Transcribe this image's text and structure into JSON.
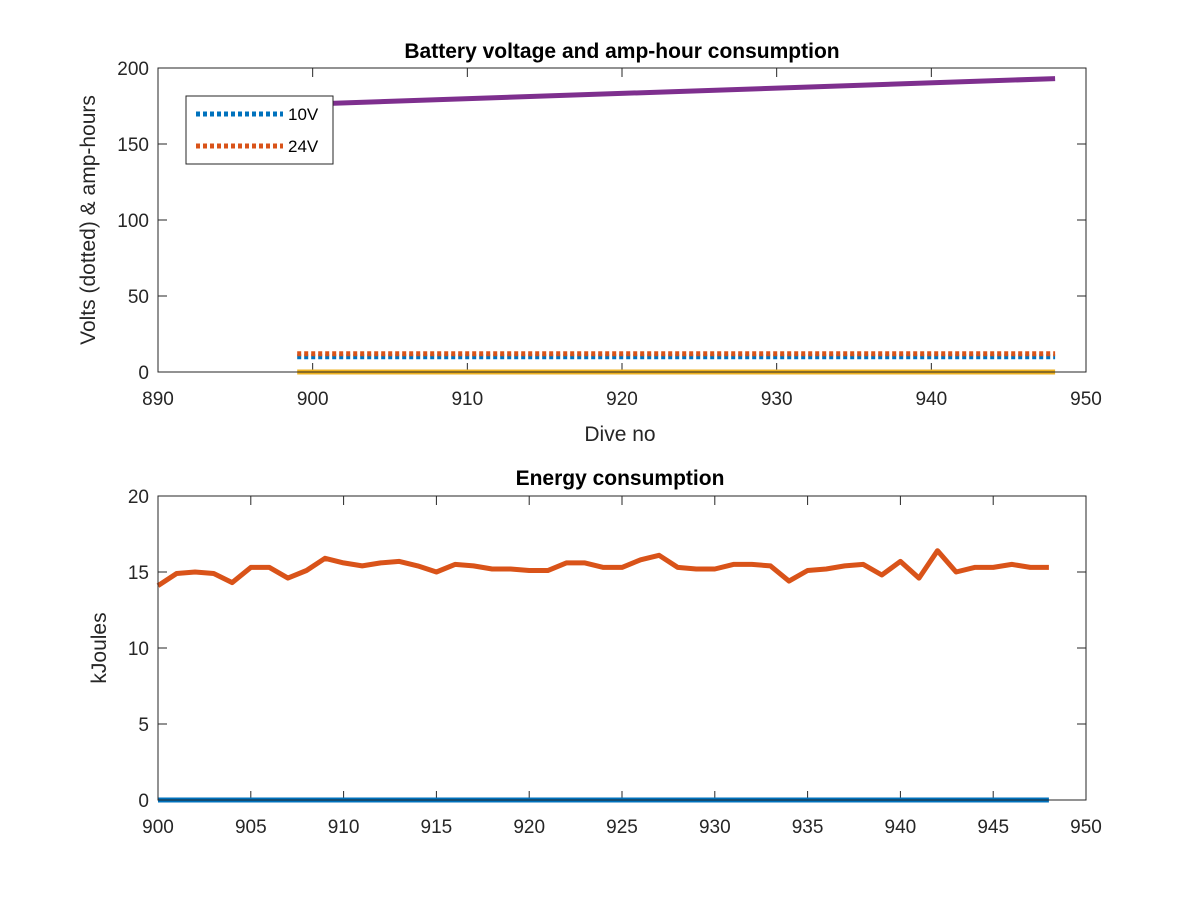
{
  "chart_data": [
    {
      "type": "line",
      "title": "Battery voltage and amp-hour consumption",
      "xlabel": "Dive no",
      "ylabel": "Volts (dotted) & amp-hours",
      "xlim": [
        890,
        950
      ],
      "ylim": [
        0,
        200
      ],
      "xticks": [
        "890",
        "900",
        "910",
        "920",
        "930",
        "940",
        "950"
      ],
      "yticks": [
        "0",
        "50",
        "100",
        "150",
        "200"
      ],
      "grid": false,
      "legend_position": "top-left",
      "series": [
        {
          "name": "10V",
          "style": "dotted",
          "color": "#0072BD",
          "x": [
            899,
            948
          ],
          "y": [
            10,
            10
          ]
        },
        {
          "name": "24V",
          "style": "dotted",
          "color": "#D95319",
          "x": [
            899,
            948
          ],
          "y": [
            12,
            12
          ]
        },
        {
          "style": "solid",
          "color": "#7E2F8E",
          "x": [
            899,
            948
          ],
          "y": [
            176,
            193
          ]
        },
        {
          "style": "solid",
          "color": "#EDB120",
          "x": [
            899,
            948
          ],
          "y": [
            0,
            0
          ]
        }
      ]
    },
    {
      "type": "line",
      "title": "Energy consumption",
      "xlabel": "",
      "ylabel": "kJoules",
      "xlim": [
        900,
        950
      ],
      "ylim": [
        0,
        20
      ],
      "xticks": [
        "900",
        "905",
        "910",
        "915",
        "920",
        "925",
        "930",
        "935",
        "940",
        "945",
        "950"
      ],
      "yticks": [
        "0",
        "5",
        "10",
        "15",
        "20"
      ],
      "grid": false,
      "series": [
        {
          "color": "#D95319",
          "x": [
            900,
            901,
            902,
            903,
            904,
            905,
            906,
            907,
            908,
            909,
            910,
            911,
            912,
            913,
            914,
            915,
            916,
            917,
            918,
            919,
            920,
            921,
            922,
            923,
            924,
            925,
            926,
            927,
            928,
            929,
            930,
            931,
            932,
            933,
            934,
            935,
            936,
            937,
            938,
            939,
            940,
            941,
            942,
            943,
            944,
            945,
            946,
            947,
            948
          ],
          "y": [
            14.1,
            14.9,
            15.0,
            14.9,
            14.3,
            15.3,
            15.3,
            14.6,
            15.1,
            15.9,
            15.6,
            15.4,
            15.6,
            15.7,
            15.4,
            15.0,
            15.5,
            15.4,
            15.2,
            15.2,
            15.1,
            15.1,
            15.6,
            15.6,
            15.3,
            15.3,
            15.8,
            16.1,
            15.3,
            15.2,
            15.2,
            15.5,
            15.5,
            15.4,
            14.4,
            15.1,
            15.2,
            15.4,
            15.5,
            14.8,
            15.7,
            14.6,
            16.4,
            15.0,
            15.3,
            15.3,
            15.5,
            15.3,
            15.3
          ]
        },
        {
          "color": "#0072BD",
          "x": [
            900,
            948
          ],
          "y": [
            0,
            0
          ]
        }
      ]
    }
  ]
}
